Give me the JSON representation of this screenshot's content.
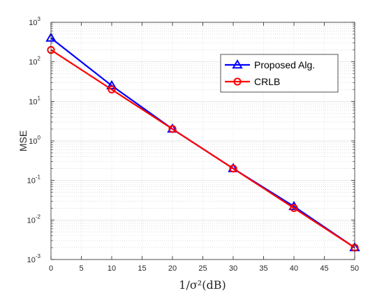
{
  "chart_data": {
    "type": "line",
    "title": "",
    "xlabel": "1/σ²(dB)",
    "ylabel": "MSE",
    "x": [
      0,
      10,
      20,
      30,
      40,
      50
    ],
    "xticks": [
      0,
      5,
      10,
      15,
      20,
      25,
      30,
      35,
      40,
      45,
      50
    ],
    "xlim": [
      0,
      50
    ],
    "ylim": [
      0.001,
      1000
    ],
    "yscale": "log",
    "yticks": [
      {
        "base": "10",
        "exp": "3"
      },
      {
        "base": "10",
        "exp": "2"
      },
      {
        "base": "10",
        "exp": "1"
      },
      {
        "base": "10",
        "exp": "0"
      },
      {
        "base": "10",
        "exp": "-1"
      },
      {
        "base": "10",
        "exp": "-2"
      },
      {
        "base": "10",
        "exp": "-3"
      }
    ],
    "grid": true,
    "minor_grid": true,
    "legend_position": "top-right",
    "series": [
      {
        "name": "Proposed Alg.",
        "color": "#0000ff",
        "marker": "triangle",
        "values": [
          400,
          25,
          2,
          0.2,
          0.022,
          0.002
        ]
      },
      {
        "name": "CRLB",
        "color": "#ff0000",
        "marker": "circle",
        "values": [
          200,
          20,
          2,
          0.2,
          0.02,
          0.002
        ]
      }
    ]
  }
}
